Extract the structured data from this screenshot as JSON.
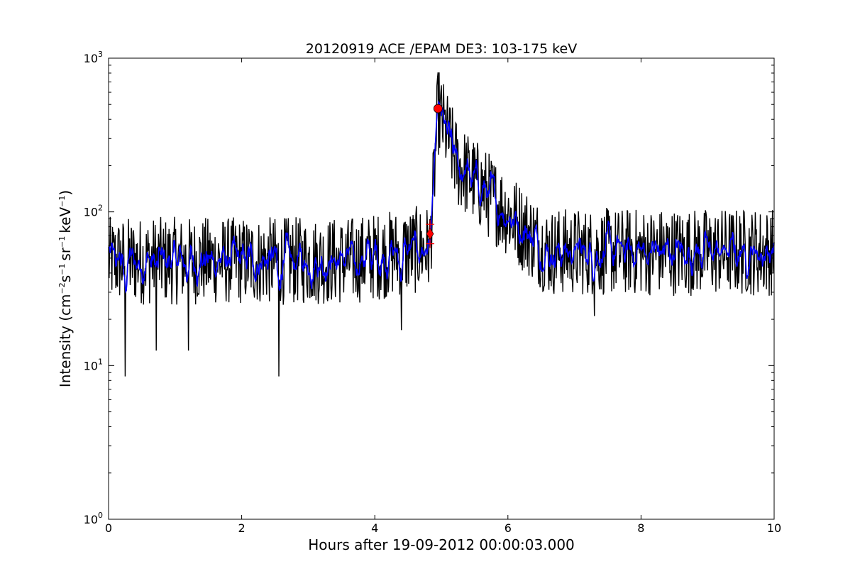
{
  "chart_data": {
    "type": "line",
    "title": "20120919 ACE /EPAM DE3: 103-175 keV",
    "xlabel": "Hours after 19-09-2012 00:00:03.000",
    "ylabel": {
      "prefix": "Intensity (cm",
      "sup1": "−2",
      "mid1": "s",
      "sup2": "−1",
      "mid2": "sr",
      "sup3": "−1",
      "mid3": "keV",
      "sup4": "−1",
      "suffix": ")"
    },
    "xlim": [
      0,
      10
    ],
    "ylim": [
      1,
      1000
    ],
    "yscale": "log",
    "xticks": [
      0,
      2,
      4,
      6,
      8,
      10
    ],
    "xtick_labels": [
      "0",
      "2",
      "4",
      "6",
      "8",
      "10"
    ],
    "yticks": [
      1,
      10,
      100,
      1000
    ],
    "ytick_labels": [
      {
        "base": "10",
        "exp": "0"
      },
      {
        "base": "10",
        "exp": "1"
      },
      {
        "base": "10",
        "exp": "2"
      },
      {
        "base": "10",
        "exp": "3"
      }
    ],
    "grid": false,
    "series": [
      {
        "role": "raw",
        "color": "#000000",
        "profile": {
          "background_level": 48,
          "background_scatter": 0.36,
          "pre_onset_rise_start": 3.6,
          "pre_onset_level": 58,
          "onset_time": 4.83,
          "peak_time": 4.95,
          "peak_level": 460,
          "post_peak_level": 200,
          "shoulder_time": 5.25,
          "decay_end_time": 6.6,
          "late_level": 55,
          "spikes": [
            [
              0.25,
              8.5
            ],
            [
              0.72,
              12.5
            ],
            [
              1.2,
              12.5
            ],
            [
              2.56,
              8.5
            ],
            [
              4.4,
              17
            ],
            [
              7.3,
              21
            ]
          ]
        }
      },
      {
        "role": "smoothed",
        "color": "#0000ff",
        "profile": {
          "background_level": 48,
          "background_scatter": 0.16
        }
      }
    ],
    "markers": [
      {
        "type": "circle",
        "x": 4.95,
        "y": 470,
        "color": "#ff0000"
      },
      {
        "type": "diamond",
        "x": 4.83,
        "y": 72,
        "color": "#ff0000"
      },
      {
        "type": "plus",
        "x": 4.83,
        "y": 83,
        "color": "#ff0000"
      },
      {
        "type": "plus",
        "x": 4.83,
        "y": 62,
        "color": "#ff0000"
      }
    ]
  }
}
